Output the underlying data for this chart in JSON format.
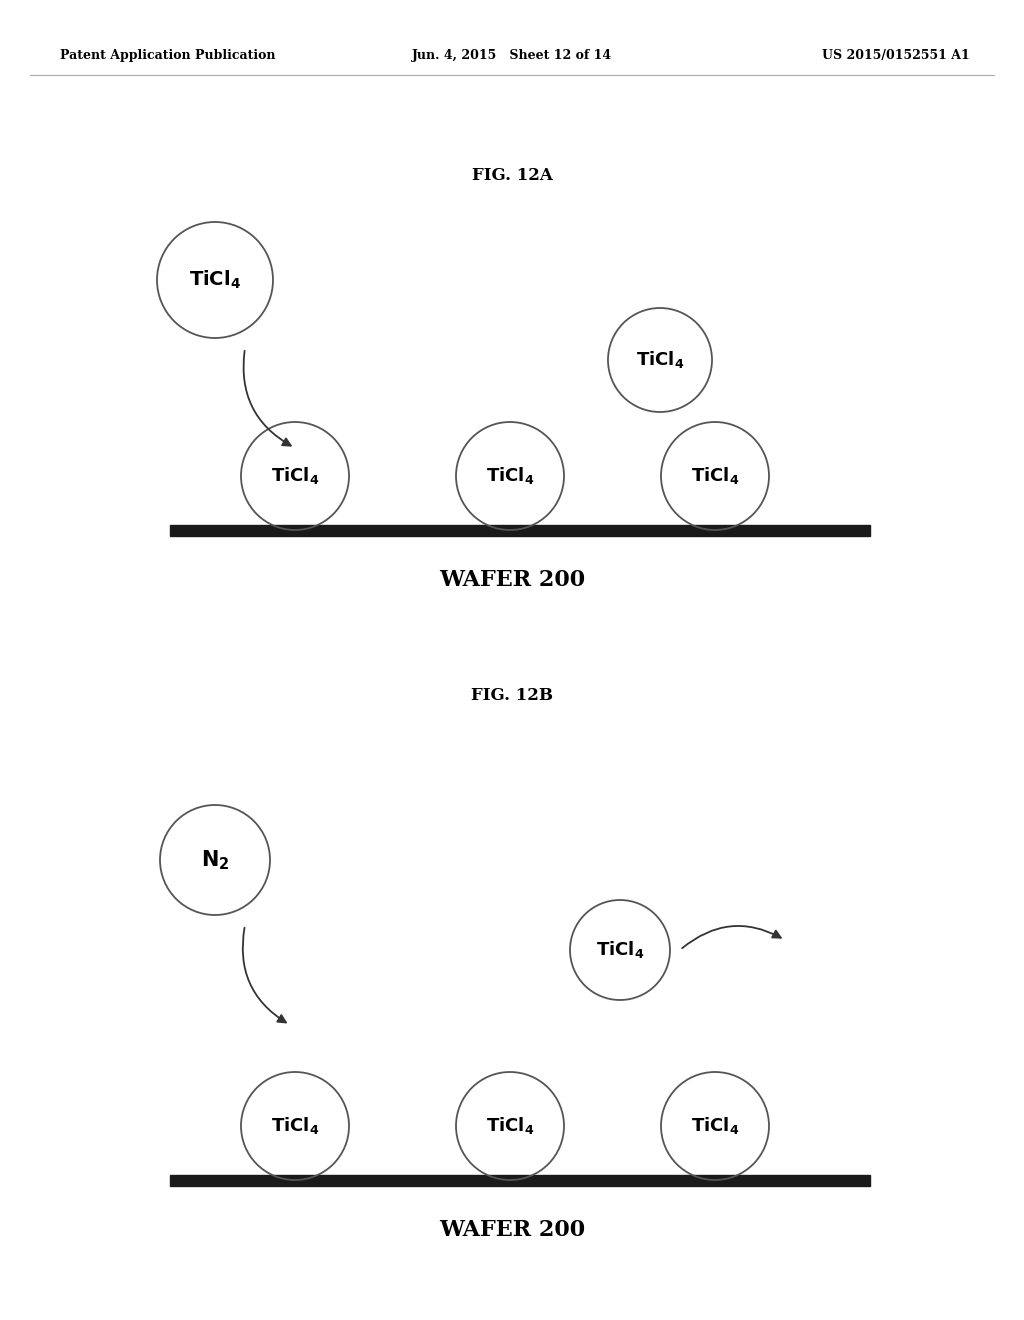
{
  "header_left": "Patent Application Publication",
  "header_middle": "Jun. 4, 2015   Sheet 12 of 14",
  "header_right": "US 2015/0152551 A1",
  "fig_a_label": "FIG. 12A",
  "fig_b_label": "FIG. 12B",
  "wafer_label": "WAFER 200",
  "background_color": "#ffffff",
  "text_color": "#000000",
  "circle_color": "#555555",
  "wafer_color": "#1a1a1a"
}
